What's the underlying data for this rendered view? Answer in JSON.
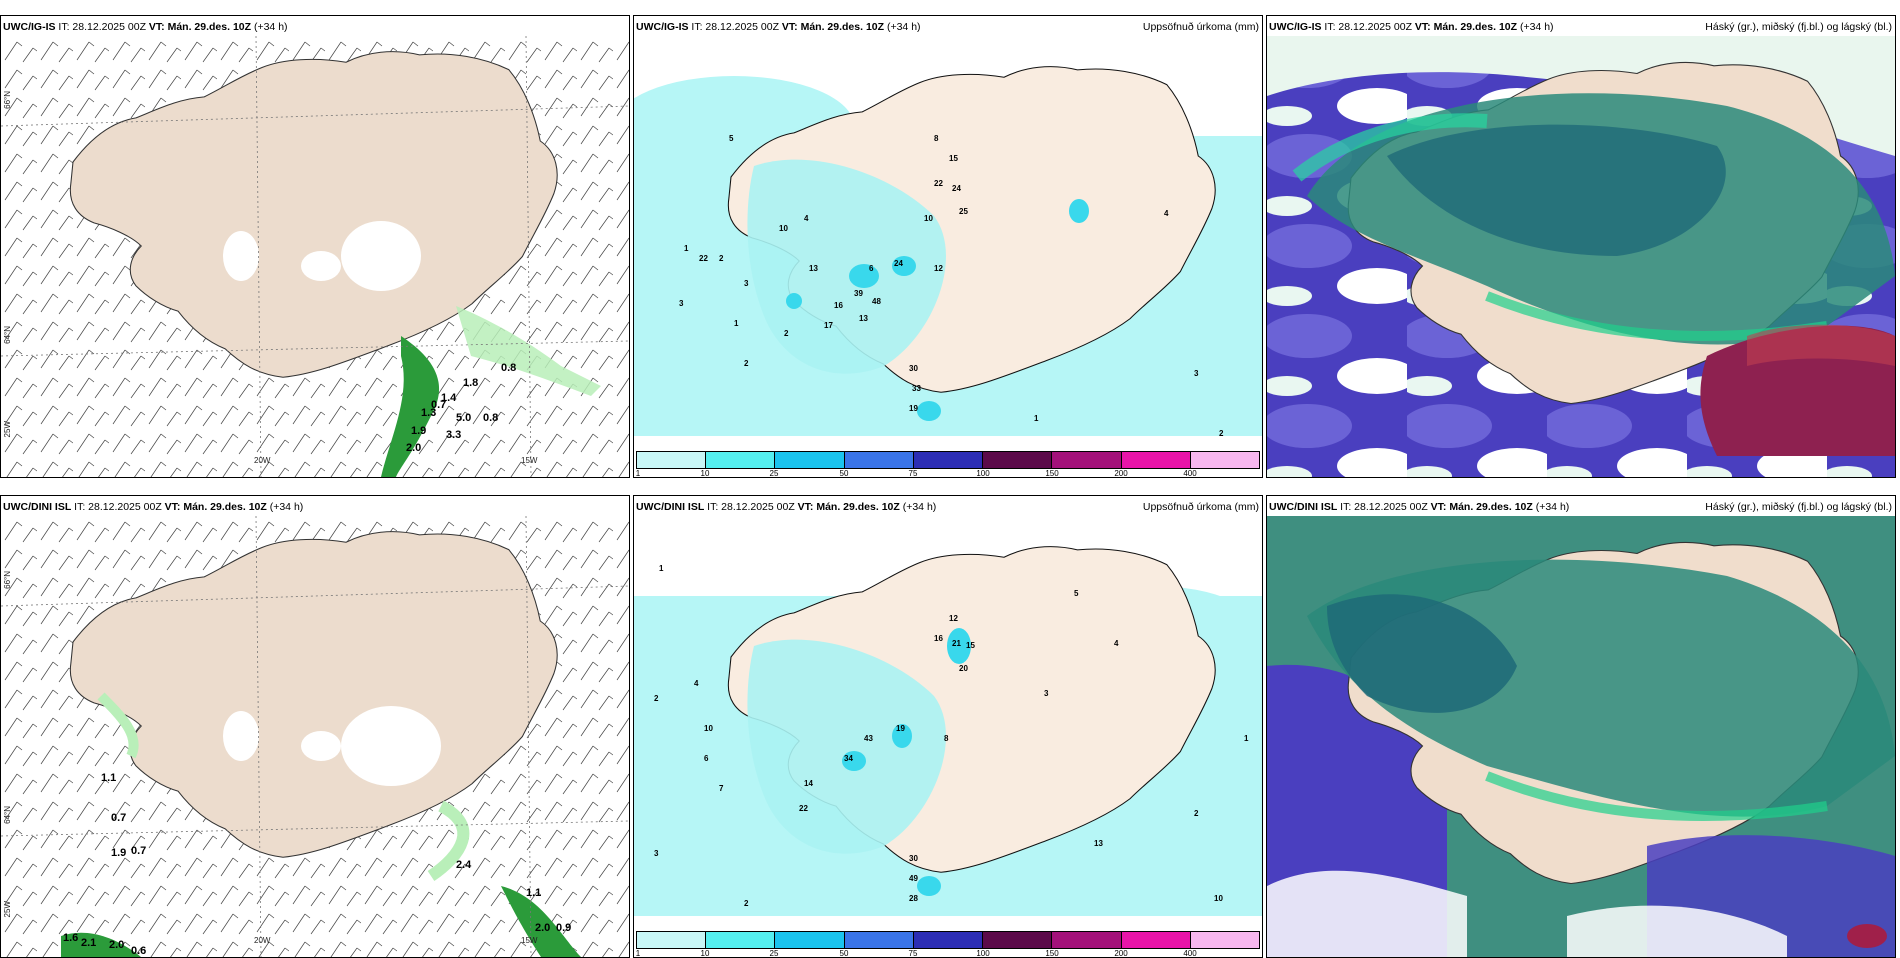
{
  "panels": {
    "p1": {
      "model": "UWC/IG-IS",
      "it": "IT: 28.12.2025 00Z",
      "vt": "VT: Mán. 29.des. 10Z",
      "lead": "(+34 h)"
    },
    "p2": {
      "model": "UWC/IG-IS",
      "it": "IT: 28.12.2025 00Z",
      "vt": "VT: Mán. 29.des. 10Z",
      "lead": "(+34 h)",
      "right": "Uppsöfnuð úrkoma (mm)"
    },
    "p3": {
      "model": "UWC/IG-IS",
      "it": "IT: 28.12.2025 00Z",
      "vt": "VT: Mán. 29.des. 10Z",
      "lead": "(+34 h)",
      "right": "Háský (gr.), miðský (fj.bl.) og lágský (bl.)"
    },
    "p4": {
      "model": "UWC/DINI ISL",
      "it": "IT: 28.12.2025 00Z",
      "vt": "VT: Mán. 29.des. 10Z",
      "lead": "(+34 h)"
    },
    "p5": {
      "model": "UWC/DINI ISL",
      "it": "IT: 28.12.2025 00Z",
      "vt": "VT: Mán. 29.des. 10Z",
      "lead": "(+34 h)",
      "right": "Uppsöfnuð úrkoma (mm)"
    },
    "p6": {
      "model": "UWC/DINI ISL",
      "it": "IT: 28.12.2025 00Z",
      "vt": "VT: Mán. 29.des. 10Z",
      "lead": "(+34 h)",
      "right": "Háský (gr.), miðský (fj.bl.) og lágský (bl.)"
    }
  },
  "axis_labels": {
    "lat66": "66°N",
    "lat64": "64°N",
    "lon25": "25W",
    "lon20": "20W",
    "lon15": "15W"
  },
  "colorbar": {
    "ticks": [
      "1",
      "10",
      "25",
      "50",
      "75",
      "100",
      "150",
      "200",
      "400"
    ],
    "colors": [
      "#c8f7f7",
      "#55f0f0",
      "#1bc4ee",
      "#3a74e8",
      "#2c2db5",
      "#5c0a4a",
      "#a3117a",
      "#e914a9",
      "#f7b7ef"
    ]
  },
  "precip_top": [
    "1",
    "2",
    "5",
    "1",
    "2",
    "3",
    "4",
    "3",
    "2",
    "10",
    "22",
    "13",
    "39",
    "48",
    "16",
    "17",
    "13",
    "24",
    "12",
    "6",
    "8",
    "15",
    "22",
    "24",
    "25",
    "10",
    "30",
    "33",
    "19",
    "4",
    "3",
    "2",
    "1"
  ],
  "precip_bottom": [
    "1",
    "2",
    "4",
    "6",
    "7",
    "3",
    "2",
    "10",
    "14",
    "34",
    "19",
    "43",
    "22",
    "30",
    "49",
    "28",
    "12",
    "16",
    "21",
    "15",
    "20",
    "8",
    "5",
    "4",
    "3",
    "13",
    "10",
    "2",
    "1"
  ],
  "gusts_top": [
    "0.8",
    "0.7",
    "1.4",
    "1.3",
    "5.0",
    "0.8",
    "1.9",
    "2.0",
    "1.8",
    "3.3"
  ],
  "gusts_bottom": [
    "1.1",
    "0.7",
    "1.9",
    "0.7",
    "2.4",
    "1.6",
    "2.1",
    "2.0",
    "0.6",
    "2.0",
    "0.9",
    "1.1"
  ]
}
